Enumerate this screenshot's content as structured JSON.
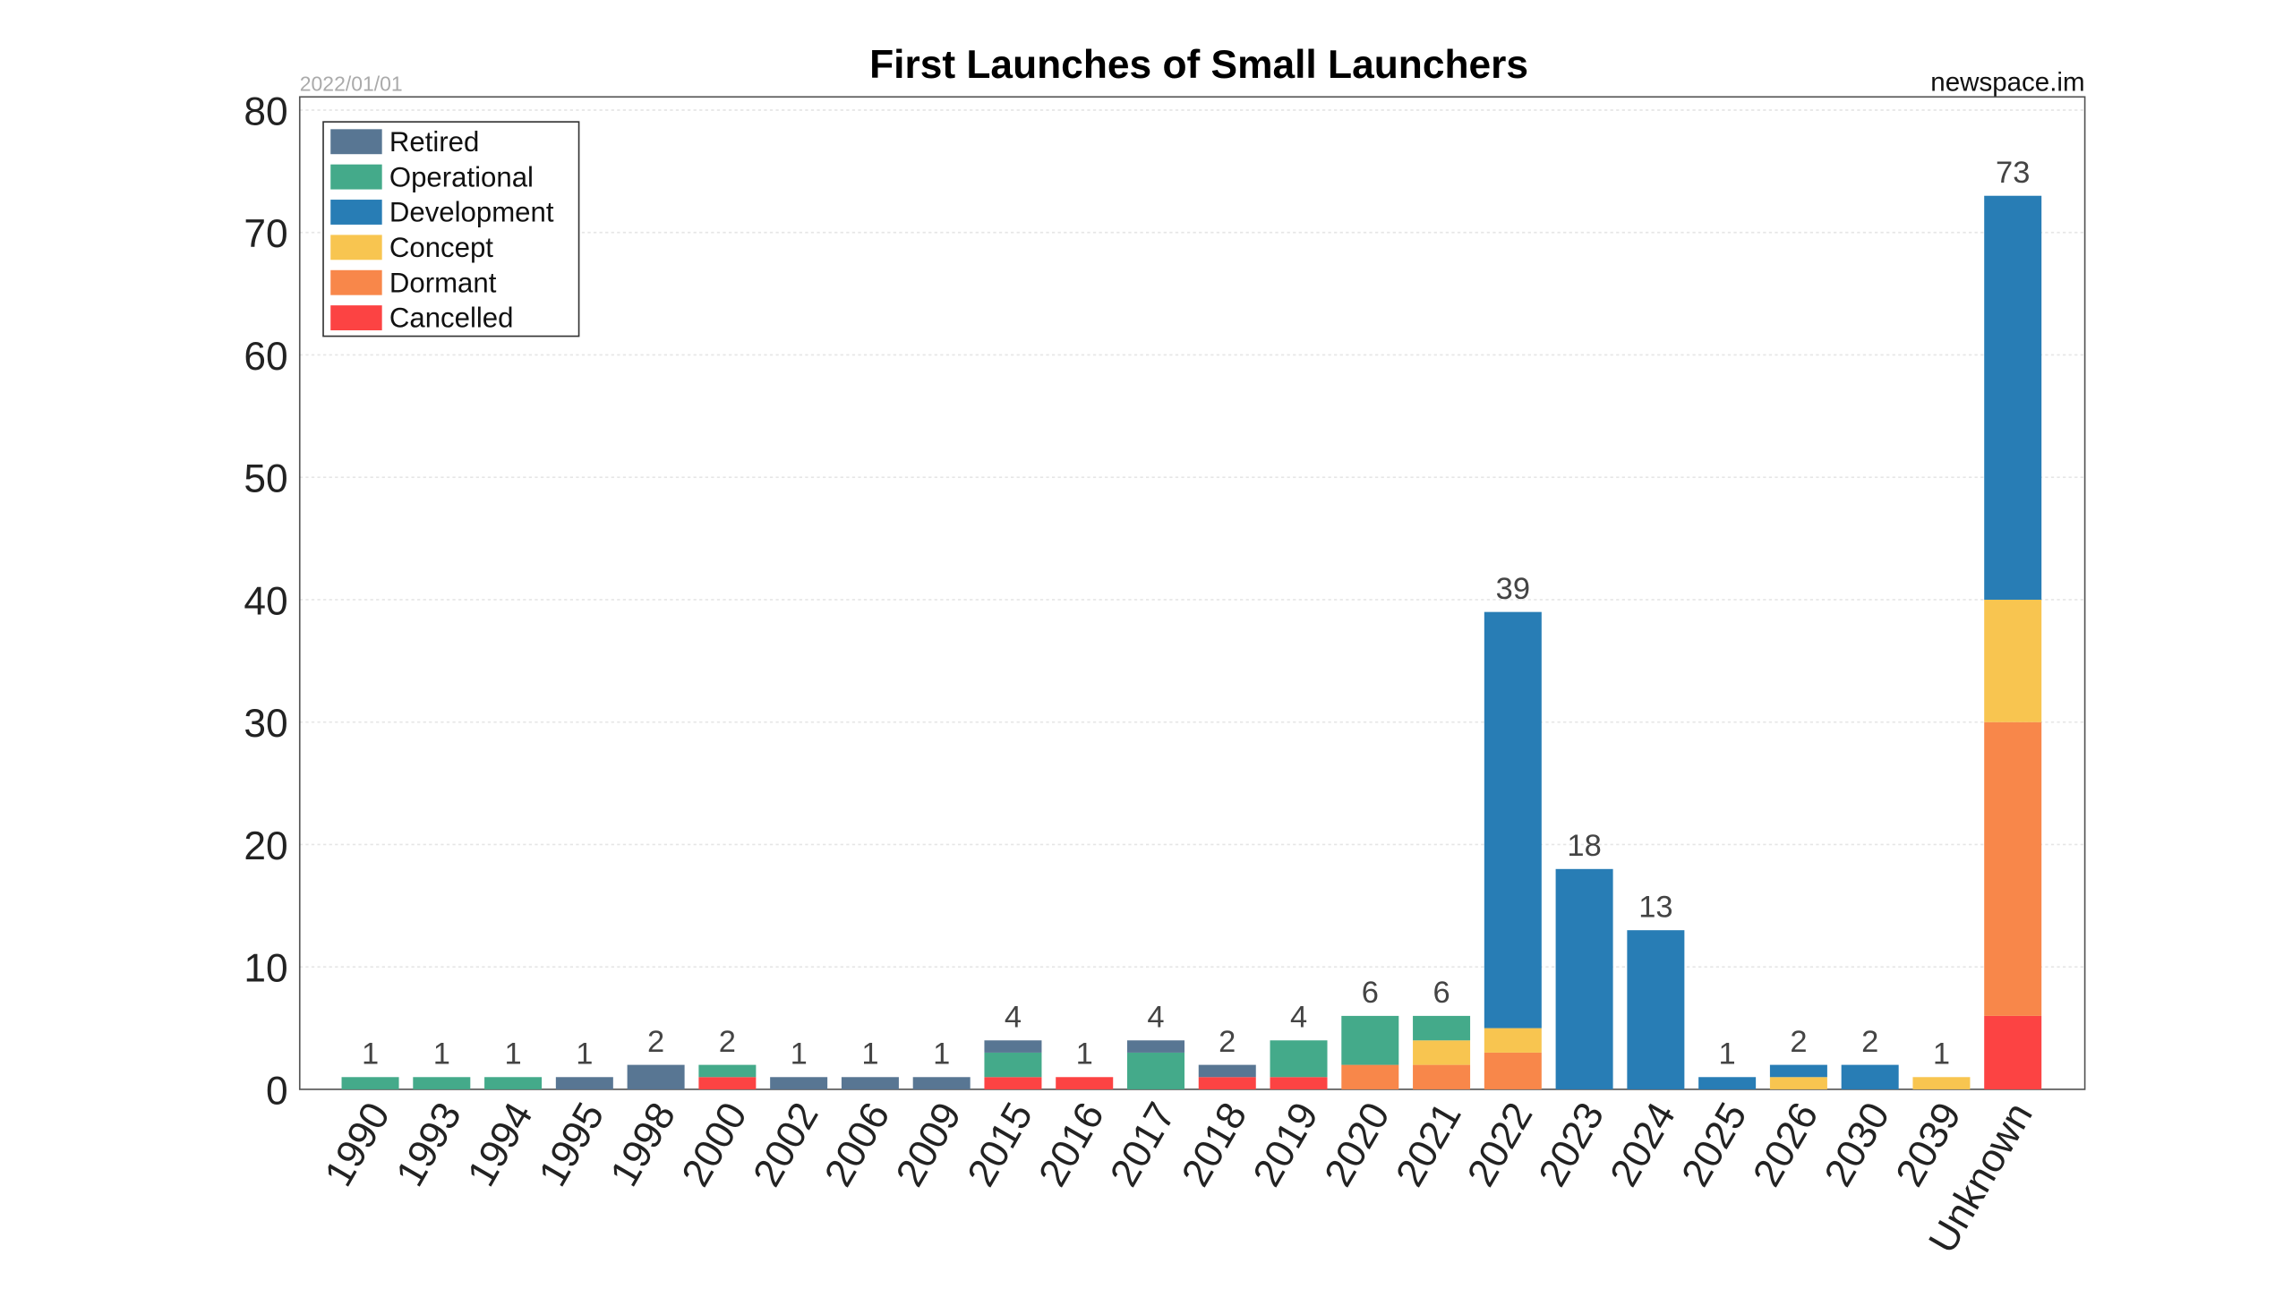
{
  "chart_data": {
    "type": "bar",
    "stacked": true,
    "title": "First Launches of Small Launchers",
    "date_note": "2022/01/01",
    "source": "newspace.im",
    "xlabel": "",
    "ylabel": "",
    "ylim": [
      0,
      80
    ],
    "yticks": [
      0,
      10,
      20,
      30,
      40,
      50,
      60,
      70,
      80
    ],
    "grid": true,
    "legend_position": "top-left",
    "categories": [
      "1990",
      "1993",
      "1994",
      "1995",
      "1998",
      "2000",
      "2002",
      "2006",
      "2009",
      "2015",
      "2016",
      "2017",
      "2018",
      "2019",
      "2020",
      "2021",
      "2022",
      "2023",
      "2024",
      "2025",
      "2026",
      "2030",
      "2039",
      "Unknown"
    ],
    "series": [
      {
        "name": "Cancelled",
        "color": "#fc4343",
        "values": [
          0,
          0,
          0,
          0,
          0,
          1,
          0,
          0,
          0,
          1,
          1,
          0,
          1,
          1,
          0,
          0,
          0,
          0,
          0,
          0,
          0,
          0,
          0,
          6
        ]
      },
      {
        "name": "Dormant",
        "color": "#f8874a",
        "values": [
          0,
          0,
          0,
          0,
          0,
          0,
          0,
          0,
          0,
          0,
          0,
          0,
          0,
          0,
          2,
          2,
          3,
          0,
          0,
          0,
          0,
          0,
          0,
          24
        ]
      },
      {
        "name": "Concept",
        "color": "#f8c550",
        "values": [
          0,
          0,
          0,
          0,
          0,
          0,
          0,
          0,
          0,
          0,
          0,
          0,
          0,
          0,
          0,
          2,
          2,
          0,
          0,
          0,
          1,
          0,
          1,
          10
        ]
      },
      {
        "name": "Development",
        "color": "#287db5",
        "values": [
          0,
          0,
          0,
          0,
          0,
          0,
          0,
          0,
          0,
          0,
          0,
          0,
          0,
          0,
          0,
          0,
          34,
          18,
          13,
          1,
          1,
          2,
          0,
          33
        ]
      },
      {
        "name": "Operational",
        "color": "#44aa8a",
        "values": [
          1,
          1,
          1,
          0,
          0,
          1,
          0,
          0,
          0,
          2,
          0,
          3,
          0,
          3,
          4,
          2,
          0,
          0,
          0,
          0,
          0,
          0,
          0,
          0
        ]
      },
      {
        "name": "Retired",
        "color": "#587693",
        "values": [
          0,
          0,
          0,
          1,
          2,
          0,
          1,
          1,
          1,
          1,
          0,
          1,
          1,
          0,
          0,
          0,
          0,
          0,
          0,
          0,
          0,
          0,
          0,
          0
        ]
      }
    ],
    "totals": [
      1,
      1,
      1,
      1,
      2,
      2,
      1,
      1,
      1,
      4,
      1,
      4,
      2,
      4,
      6,
      6,
      39,
      18,
      13,
      1,
      2,
      2,
      1,
      73
    ],
    "legend_order": [
      "Retired",
      "Operational",
      "Development",
      "Concept",
      "Dormant",
      "Cancelled"
    ]
  }
}
